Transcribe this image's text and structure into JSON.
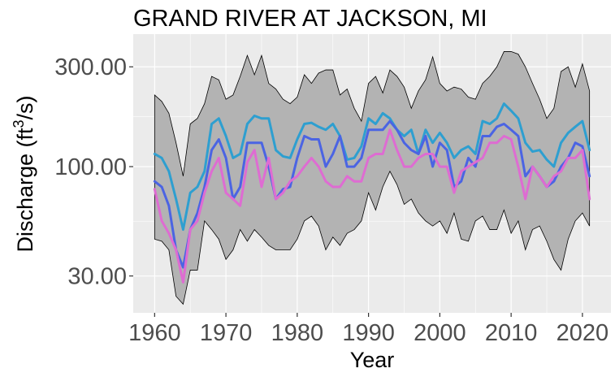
{
  "chart_data": {
    "type": "line",
    "title": "GRAND RIVER AT JACKSON, MI",
    "xlabel": "Year",
    "ylabel": "Discharge (ft³/s)",
    "ylabel_parts": {
      "before": "Discharge (ft",
      "sup": "3",
      "after": "/s)"
    },
    "x_scale": "linear",
    "y_scale": "log10",
    "xlim": [
      1957,
      2024
    ],
    "ylim": [
      20,
      430
    ],
    "x_ticks": [
      1960,
      1970,
      1980,
      1990,
      2000,
      2010,
      2020
    ],
    "x_tick_labels": [
      "1960",
      "1970",
      "1980",
      "1990",
      "2000",
      "2010",
      "2020"
    ],
    "y_ticks": [
      30,
      100,
      300
    ],
    "y_tick_labels": [
      "30.00",
      "100.00",
      "300.00"
    ],
    "grid": true,
    "legend": "none",
    "x": [
      1960,
      1961,
      1962,
      1963,
      1964,
      1965,
      1966,
      1967,
      1968,
      1969,
      1970,
      1971,
      1972,
      1973,
      1974,
      1975,
      1976,
      1977,
      1978,
      1979,
      1980,
      1981,
      1982,
      1983,
      1984,
      1985,
      1986,
      1987,
      1988,
      1989,
      1990,
      1991,
      1992,
      1993,
      1994,
      1995,
      1996,
      1997,
      1998,
      1999,
      2000,
      2001,
      2002,
      2003,
      2004,
      2005,
      2006,
      2007,
      2008,
      2009,
      2010,
      2011,
      2012,
      2013,
      2014,
      2015,
      2016,
      2017,
      2018,
      2019,
      2020,
      2021
    ],
    "band": {
      "fill": "#b3b3b3",
      "stroke": "#000000",
      "upper": [
        220,
        205,
        180,
        130,
        90,
        160,
        170,
        200,
        270,
        260,
        210,
        220,
        270,
        340,
        275,
        340,
        250,
        235,
        210,
        200,
        215,
        275,
        250,
        280,
        290,
        290,
        220,
        235,
        190,
        165,
        250,
        270,
        225,
        290,
        270,
        240,
        190,
        230,
        260,
        335,
        250,
        230,
        240,
        235,
        215,
        210,
        250,
        270,
        300,
        355,
        355,
        345,
        300,
        250,
        210,
        170,
        190,
        285,
        300,
        240,
        310,
        230
      ],
      "lower": [
        45,
        44,
        40,
        24,
        22,
        32,
        32,
        55,
        50,
        45,
        36,
        40,
        50,
        44,
        50,
        46,
        42,
        40,
        40,
        40,
        45,
        55,
        58,
        52,
        40,
        46,
        42,
        48,
        50,
        55,
        75,
        62,
        80,
        95,
        82,
        66,
        70,
        60,
        55,
        52,
        55,
        48,
        60,
        45,
        44,
        55,
        58,
        50,
        50,
        62,
        48,
        55,
        40,
        50,
        52,
        44,
        36,
        32,
        45,
        55,
        60,
        52
      ]
    },
    "series": [
      {
        "color": "#2e9fd0",
        "values": [
          115,
          110,
          95,
          70,
          50,
          75,
          80,
          95,
          160,
          170,
          140,
          110,
          115,
          160,
          175,
          170,
          170,
          120,
          112,
          110,
          135,
          160,
          162,
          155,
          150,
          160,
          140,
          108,
          110,
          125,
          170,
          160,
          180,
          170,
          150,
          140,
          150,
          115,
          150,
          130,
          145,
          130,
          110,
          120,
          125,
          115,
          165,
          160,
          170,
          200,
          185,
          170,
          130,
          118,
          120,
          108,
          100,
          130,
          145,
          155,
          165,
          120
        ]
      },
      {
        "color": "#4b64e3",
        "values": [
          85,
          80,
          65,
          40,
          33,
          50,
          60,
          80,
          120,
          135,
          110,
          70,
          80,
          130,
          130,
          130,
          100,
          70,
          78,
          80,
          110,
          140,
          135,
          135,
          100,
          115,
          140,
          100,
          100,
          110,
          150,
          150,
          150,
          165,
          150,
          130,
          120,
          115,
          140,
          100,
          130,
          120,
          80,
          85,
          110,
          100,
          140,
          140,
          155,
          160,
          150,
          140,
          90,
          100,
          90,
          80,
          85,
          100,
          110,
          130,
          125,
          90
        ]
      },
      {
        "color": "#de6cd2",
        "values": [
          78,
          55,
          48,
          40,
          28,
          50,
          55,
          75,
          95,
          110,
          75,
          70,
          65,
          105,
          120,
          80,
          110,
          70,
          75,
          85,
          90,
          100,
          110,
          100,
          85,
          80,
          80,
          90,
          85,
          85,
          110,
          115,
          115,
          150,
          120,
          100,
          100,
          110,
          115,
          115,
          100,
          100,
          75,
          95,
          100,
          105,
          110,
          130,
          130,
          140,
          135,
          100,
          70,
          100,
          90,
          80,
          90,
          95,
          110,
          110,
          120,
          70
        ]
      }
    ]
  }
}
